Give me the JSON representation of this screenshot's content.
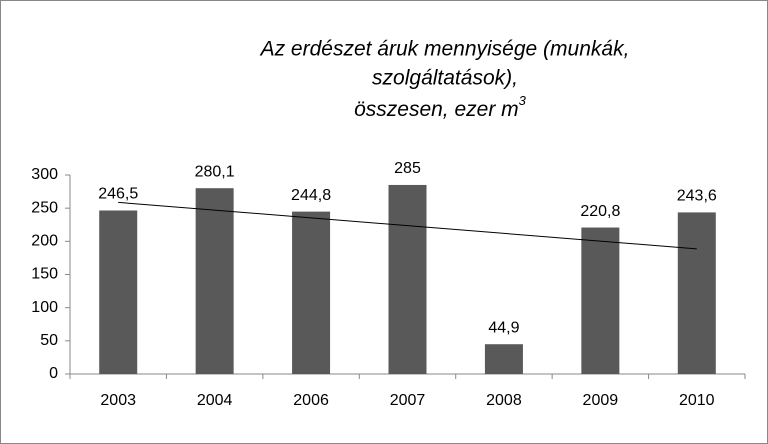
{
  "chart_data": {
    "type": "bar",
    "title_lines": [
      "Az erdészet áruk mennyisége (munkák,",
      "szolgáltatások),",
      "összesen, ezer m"
    ],
    "title_superscript": "3",
    "categories": [
      "2003",
      "2004",
      "2006",
      "2007",
      "2008",
      "2009",
      "2010"
    ],
    "values": [
      246.5,
      280.1,
      244.8,
      285,
      44.9,
      220.8,
      243.6
    ],
    "value_labels": [
      "246,5",
      "280,1",
      "244,8",
      "285",
      "44,9",
      "220,8",
      "243,6"
    ],
    "color": "#595959",
    "ylim": [
      0,
      300
    ],
    "yticks": [
      0,
      50,
      100,
      150,
      200,
      250,
      300
    ],
    "grid": false,
    "trendline": true
  }
}
